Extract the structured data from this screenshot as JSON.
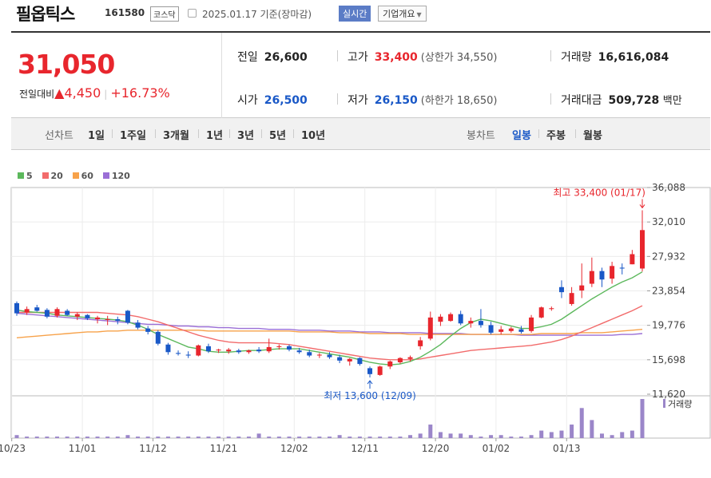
{
  "header": {
    "name": "필옵틱스",
    "code": "161580",
    "market": "코스닥",
    "date": "2025.01.17",
    "basis": "기준(장마감)",
    "realtime_label": "실시간",
    "company_info_label": "기업개요"
  },
  "price": {
    "current": "31,050",
    "change_label": "전일대비",
    "change_arrow": "▲",
    "change": "4,450",
    "change_pct": "+16.73%",
    "prev_close_label": "전일",
    "prev_close": "26,600",
    "open_label": "시가",
    "open": "26,500",
    "high_label": "고가",
    "high": "33,400",
    "upper_limit": "(상한가 34,550)",
    "low_label": "저가",
    "low": "26,150",
    "lower_limit": "(하한가 18,650)",
    "volume_label": "거래량",
    "volume": "16,616,084",
    "value_label": "거래대금",
    "value": "509,728",
    "value_unit": "백만"
  },
  "tabs": {
    "line_chart": "선차트",
    "ranges": [
      "1일",
      "1주일",
      "3개월",
      "1년",
      "3년",
      "5년",
      "10년"
    ],
    "candle_chart": "봉차트",
    "candles": [
      "일봉",
      "주봉",
      "월봉"
    ],
    "active_candle": "일봉"
  },
  "colors": {
    "up": "#e8262d",
    "down": "#1958c7",
    "ma5": "#5cb85c",
    "ma20": "#f26b6b",
    "ma60": "#f7a24a",
    "ma120": "#9b6fd6",
    "volume": "#9b86c9"
  },
  "chart_data": {
    "type": "candlestick",
    "legend": [
      {
        "name": "5",
        "color": "#5cb85c"
      },
      {
        "name": "20",
        "color": "#f26b6b"
      },
      {
        "name": "60",
        "color": "#f7a24a"
      },
      {
        "name": "120",
        "color": "#9b6fd6"
      }
    ],
    "y_ticks": [
      "36,088",
      "32,010",
      "27,932",
      "23,854",
      "19,776",
      "15,698",
      "11,620"
    ],
    "ylim": [
      11620,
      36088
    ],
    "x_tick_labels": [
      "10/23",
      "11/01",
      "11/12",
      "11/21",
      "12/02",
      "12/11",
      "12/20",
      "01/02",
      "01/13"
    ],
    "x_tick_index": [
      0,
      7,
      14,
      21,
      28,
      35,
      42,
      48,
      55
    ],
    "high_annotation": "최고 33,400 (01/17)",
    "low_annotation": "최저 13,600 (12/09)",
    "volume_label": "거래량",
    "candles": [
      [
        22400,
        22600,
        20900,
        21200
      ],
      [
        21300,
        22000,
        21000,
        21700
      ],
      [
        21900,
        22200,
        21400,
        21500
      ],
      [
        21600,
        21800,
        20600,
        20800
      ],
      [
        20900,
        21900,
        20700,
        21700
      ],
      [
        21500,
        21700,
        20900,
        21000
      ],
      [
        20800,
        21300,
        20400,
        21100
      ],
      [
        21000,
        21100,
        20400,
        20600
      ],
      [
        20500,
        20900,
        20000,
        20700
      ],
      [
        20500,
        20900,
        19800,
        20500
      ],
      [
        20500,
        20800,
        19900,
        20300
      ],
      [
        21500,
        21600,
        19900,
        20100
      ],
      [
        20100,
        20400,
        19300,
        19500
      ],
      [
        19400,
        19700,
        18700,
        19000
      ],
      [
        19000,
        19200,
        17400,
        17600
      ],
      [
        17500,
        17700,
        16300,
        16600
      ],
      [
        16500,
        16800,
        16200,
        16400
      ],
      [
        16300,
        16700,
        15900,
        16200
      ],
      [
        16200,
        17500,
        16100,
        17400
      ],
      [
        17300,
        17600,
        16500,
        16700
      ],
      [
        16800,
        17000,
        16500,
        16900
      ],
      [
        16700,
        17100,
        16400,
        16900
      ],
      [
        16800,
        17000,
        16400,
        16600
      ],
      [
        16600,
        16900,
        16400,
        16800
      ],
      [
        16900,
        17200,
        16500,
        16700
      ],
      [
        16700,
        18200,
        16500,
        17200
      ],
      [
        17200,
        17500,
        16900,
        17300
      ],
      [
        17300,
        17500,
        16700,
        16900
      ],
      [
        16800,
        17100,
        16400,
        16600
      ],
      [
        16600,
        16900,
        16000,
        16200
      ],
      [
        16200,
        16500,
        15900,
        16300
      ],
      [
        16300,
        16600,
        15800,
        16000
      ],
      [
        16000,
        16300,
        15300,
        15600
      ],
      [
        15500,
        15900,
        15000,
        15800
      ],
      [
        15900,
        16000,
        15000,
        15200
      ],
      [
        14700,
        14900,
        13600,
        14000
      ],
      [
        13900,
        15000,
        13800,
        14900
      ],
      [
        14900,
        15600,
        14600,
        15500
      ],
      [
        15400,
        16000,
        15200,
        15900
      ],
      [
        15800,
        16200,
        15500,
        16000
      ],
      [
        17300,
        18400,
        16900,
        18000
      ],
      [
        18200,
        21400,
        18000,
        20700
      ],
      [
        20200,
        21100,
        19700,
        20800
      ],
      [
        20300,
        21300,
        20200,
        21100
      ],
      [
        21100,
        21500,
        19800,
        20000
      ],
      [
        20000,
        20700,
        19500,
        20300
      ],
      [
        20300,
        21700,
        19500,
        19800
      ],
      [
        19800,
        20200,
        18700,
        18900
      ],
      [
        19000,
        19700,
        18700,
        19300
      ],
      [
        19100,
        19600,
        18900,
        19400
      ],
      [
        19300,
        19700,
        18800,
        19000
      ],
      [
        19100,
        21000,
        18900,
        20700
      ],
      [
        20700,
        22000,
        20600,
        21900
      ],
      [
        21700,
        22000,
        21500,
        21800
      ],
      [
        24300,
        25100,
        23000,
        23700
      ],
      [
        22300,
        24300,
        22100,
        23600
      ],
      [
        23900,
        27100,
        23000,
        24500
      ],
      [
        24700,
        27800,
        24300,
        26200
      ],
      [
        26200,
        26600,
        24300,
        25200
      ],
      [
        25300,
        27300,
        24700,
        26800
      ],
      [
        26600,
        27100,
        25800,
        26500
      ],
      [
        27000,
        28700,
        27000,
        28200
      ],
      [
        26500,
        33400,
        26150,
        31050
      ]
    ],
    "volume": [
      2,
      1,
      1,
      1,
      1,
      1,
      1,
      1,
      1,
      1,
      1,
      2,
      1,
      1,
      1,
      1,
      1,
      1,
      1,
      1,
      1,
      1,
      1,
      1,
      3,
      1,
      1,
      1,
      1,
      1,
      1,
      1,
      2,
      1,
      1,
      1,
      1,
      1,
      1,
      2,
      3,
      9,
      4,
      3,
      3,
      2,
      1,
      2,
      2,
      1,
      1,
      2,
      5,
      4,
      5,
      9,
      20,
      12,
      3,
      2,
      4,
      5,
      26
    ],
    "ma5": [
      21600,
      21400,
      21300,
      21200,
      21000,
      20900,
      20800,
      20700,
      20600,
      20500,
      20400,
      20200,
      19800,
      19300,
      18700,
      18200,
      17700,
      17200,
      17000,
      16700,
      16600,
      16600,
      16700,
      16800,
      16800,
      16900,
      17000,
      17000,
      17000,
      16800,
      16600,
      16400,
      16200,
      16000,
      15700,
      15400,
      15200,
      15100,
      15200,
      15500,
      16000,
      16700,
      17500,
      18500,
      19400,
      20100,
      20500,
      20300,
      20000,
      19700,
      19400,
      19400,
      19600,
      19900,
      20500,
      21300,
      22100,
      22900,
      23600,
      24300,
      24900,
      25400,
      26100
    ],
    "ma20": [
      21300,
      21300,
      21300,
      21300,
      21300,
      21300,
      21300,
      21300,
      21300,
      21200,
      21100,
      21000,
      20800,
      20500,
      20200,
      19800,
      19400,
      19000,
      18600,
      18300,
      18000,
      17800,
      17700,
      17700,
      17700,
      17700,
      17600,
      17500,
      17300,
      17100,
      16900,
      16700,
      16500,
      16300,
      16100,
      15900,
      15800,
      15700,
      15700,
      15700,
      15800,
      16000,
      16200,
      16400,
      16600,
      16800,
      16900,
      17000,
      17100,
      17200,
      17300,
      17400,
      17600,
      17800,
      18100,
      18500,
      19000,
      19500,
      20000,
      20500,
      21000,
      21500,
      22100
    ],
    "ma60": [
      18300,
      18400,
      18500,
      18600,
      18700,
      18800,
      18900,
      19000,
      19000,
      19100,
      19100,
      19200,
      19200,
      19200,
      19200,
      19200,
      19200,
      19200,
      19200,
      19100,
      19100,
      19100,
      19100,
      19100,
      19100,
      19100,
      19100,
      19100,
      19000,
      19000,
      19000,
      19000,
      18900,
      18900,
      18900,
      18800,
      18800,
      18800,
      18800,
      18700,
      18700,
      18700,
      18700,
      18700,
      18700,
      18700,
      18700,
      18700,
      18700,
      18700,
      18700,
      18700,
      18800,
      18800,
      18800,
      18800,
      18900,
      18900,
      18900,
      19000,
      19100,
      19200,
      19300
    ],
    "ma120": [
      21200,
      21100,
      21000,
      20900,
      20800,
      20700,
      20600,
      20500,
      20400,
      20300,
      20200,
      20100,
      20000,
      19900,
      19900,
      19800,
      19700,
      19700,
      19600,
      19600,
      19500,
      19500,
      19400,
      19400,
      19400,
      19300,
      19300,
      19300,
      19200,
      19200,
      19200,
      19100,
      19100,
      19100,
      19000,
      19000,
      19000,
      18900,
      18900,
      18900,
      18900,
      18800,
      18800,
      18800,
      18800,
      18700,
      18700,
      18700,
      18700,
      18700,
      18600,
      18600,
      18600,
      18600,
      18600,
      18600,
      18600,
      18600,
      18600,
      18600,
      18700,
      18700,
      18800
    ]
  }
}
